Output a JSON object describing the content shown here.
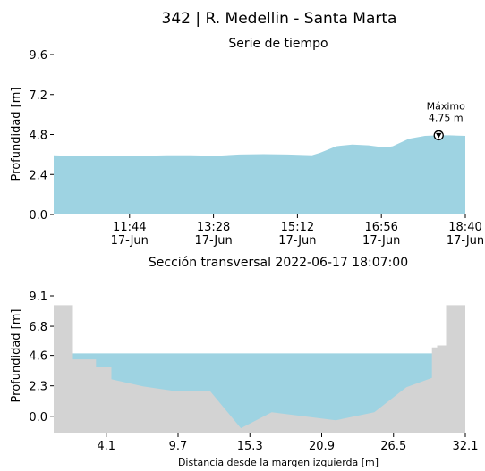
{
  "title": "342 | R. Medellin - Santa Marta",
  "colors": {
    "water": "#9ed3e2",
    "ground": "#d3d3d3",
    "axis": "#000000"
  },
  "chart_data": [
    {
      "type": "area",
      "title": "Serie de tiempo",
      "ylabel": "Profundidad [m]",
      "xlabel": "",
      "ylim": [
        0,
        9.6
      ],
      "yticks": [
        "0.0",
        "2.4",
        "4.8",
        "7.2",
        "9.6"
      ],
      "ytick_values": [
        0,
        2.4,
        4.8,
        7.2,
        9.6
      ],
      "xlim": [
        "2022-06-17 10:10",
        "2022-06-17 18:40"
      ],
      "xticks": [
        {
          "time": "11:44",
          "date": "17-Jun",
          "value": "2022-06-17 11:44"
        },
        {
          "time": "13:28",
          "date": "17-Jun",
          "value": "2022-06-17 13:28"
        },
        {
          "time": "15:12",
          "date": "17-Jun",
          "value": "2022-06-17 15:12"
        },
        {
          "time": "16:56",
          "date": "17-Jun",
          "value": "2022-06-17 16:56"
        },
        {
          "time": "18:40",
          "date": "17-Jun",
          "value": "2022-06-17 18:40"
        }
      ],
      "x": [
        "2022-06-17 10:10",
        "2022-06-17 10:30",
        "2022-06-17 11:00",
        "2022-06-17 11:30",
        "2022-06-17 12:00",
        "2022-06-17 12:30",
        "2022-06-17 13:00",
        "2022-06-17 13:30",
        "2022-06-17 14:00",
        "2022-06-17 14:30",
        "2022-06-17 15:00",
        "2022-06-17 15:30",
        "2022-06-17 15:40",
        "2022-06-17 16:00",
        "2022-06-17 16:20",
        "2022-06-17 16:40",
        "2022-06-17 17:00",
        "2022-06-17 17:10",
        "2022-06-17 17:30",
        "2022-06-17 17:50",
        "2022-06-17 18:07",
        "2022-06-17 18:20",
        "2022-06-17 18:40"
      ],
      "y": [
        3.55,
        3.52,
        3.5,
        3.5,
        3.52,
        3.55,
        3.55,
        3.52,
        3.6,
        3.62,
        3.6,
        3.55,
        3.7,
        4.1,
        4.2,
        4.15,
        4.02,
        4.1,
        4.55,
        4.72,
        4.75,
        4.75,
        4.72
      ],
      "annotation": {
        "label": "Máximo",
        "value_label": "4.75 m",
        "x": "2022-06-17 18:07",
        "y": 4.75
      }
    },
    {
      "type": "area",
      "title": "Sección transversal 2022-06-17 18:07:00",
      "ylabel": "Profundidad [m]",
      "xlabel": "Distancia desde la margen izquierda [m]",
      "ylim": [
        -1.3,
        9.1
      ],
      "xlim": [
        0,
        32.1
      ],
      "yticks": [
        "0.0",
        "2.3",
        "4.6",
        "6.8",
        "9.1"
      ],
      "ytick_values": [
        0,
        2.3,
        4.6,
        6.8,
        9.1
      ],
      "xticks": [
        "4.1",
        "9.7",
        "15.3",
        "20.9",
        "26.5",
        "32.1"
      ],
      "xtick_values": [
        4.1,
        9.7,
        15.3,
        20.9,
        26.5,
        32.1
      ],
      "water_level": 4.75,
      "bed": {
        "x": [
          0,
          1.5,
          1.5,
          3.3,
          3.3,
          4.5,
          4.5,
          7.0,
          9.5,
          12.2,
          14.6,
          17.0,
          22.0,
          25.0,
          27.5,
          29.5,
          29.5,
          29.9,
          29.9,
          30.6,
          30.6,
          32.1
        ],
        "y": [
          8.4,
          8.4,
          4.3,
          4.3,
          3.7,
          3.7,
          2.8,
          2.25,
          1.9,
          1.9,
          -0.9,
          0.3,
          -0.3,
          0.3,
          2.2,
          2.9,
          5.2,
          5.2,
          5.35,
          5.35,
          8.4,
          8.4
        ]
      }
    }
  ]
}
